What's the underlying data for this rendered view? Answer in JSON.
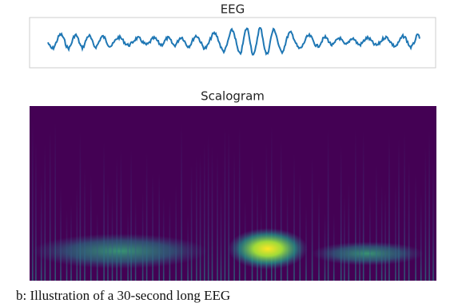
{
  "panels": [
    {
      "title": "EEG"
    },
    {
      "title": "Scalogram"
    }
  ],
  "caption": "b: Illustration of a 30-second long EEG"
}
